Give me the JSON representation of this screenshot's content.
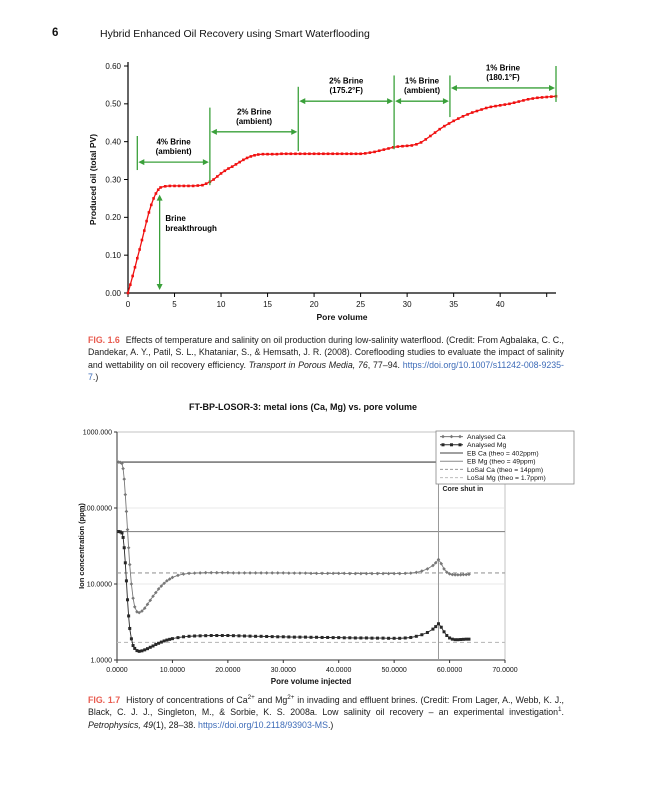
{
  "header": {
    "page_number": "6",
    "running_title": "Hybrid Enhanced Oil Recovery using Smart Waterflooding"
  },
  "captions": {
    "fig1": {
      "label": "FIG. 1.6",
      "part1": "Effects of temperature and salinity on oil production during low-salinity waterflood. (Credit: From Agbalaka, C. C., Dandekar, A. Y., Patil, S. L., Khataniar, S., & Hemsath, J. R. (2008). Coreflooding studies to evaluate the impact of salinity and wettability on oil recovery efficiency. ",
      "italic": "Transport in Porous Media, 76",
      "part2": ", 77–94. ",
      "link": "https://doi.org/10.1007/s11242-008-9235-7",
      "part3": ".)"
    },
    "fig2": {
      "label": "FIG. 1.7",
      "part1": "History of concentrations of Ca",
      "sup1": "2+",
      "part2": " and Mg",
      "sup2": "2+",
      "part3": " in invading and effluent brines. (Credit: From Lager, A., Webb, K. J., Black, C. J. J., Singleton, M., & Sorbie, K. S. 2008a. Low salinity oil recovery – an experimental investigation",
      "sup3": "1",
      "part4": ". ",
      "italic": "Petrophysics, 49",
      "part5": "(1), 28–38. ",
      "link": "https://doi.org/10.2118/93903-MS",
      "part6": ".)"
    }
  },
  "chart_data": [
    {
      "type": "line",
      "title": "",
      "xlabel": "Pore volume",
      "ylabel": "Produced oil (total PV)",
      "xlim": [
        0,
        46
      ],
      "ylim": [
        0,
        0.6
      ],
      "xticks": [
        0,
        5,
        10,
        15,
        20,
        25,
        30,
        35,
        40
      ],
      "yticks": [
        "0.00",
        "0.10",
        "0.20",
        "0.30",
        "0.40",
        "0.50",
        "0.60"
      ],
      "series": [
        {
          "name": "Produced oil",
          "color": "#f01010",
          "marker": "square",
          "x": [
            0,
            0.25,
            0.5,
            0.75,
            1,
            1.25,
            1.5,
            1.75,
            2,
            2.25,
            2.5,
            2.75,
            3,
            3.25,
            3.5,
            4,
            4.5,
            5,
            5.5,
            6,
            6.5,
            7,
            7.5,
            8,
            8.4,
            8.8,
            9.2,
            9.6,
            10,
            10.4,
            10.8,
            11.2,
            11.6,
            12,
            12.4,
            12.8,
            13.2,
            13.6,
            14,
            14.5,
            15,
            15.5,
            16,
            16.5,
            17,
            17.5,
            18,
            18.5,
            19,
            19.5,
            20,
            20.5,
            21,
            21.5,
            22,
            22.5,
            23,
            23.5,
            24,
            24.5,
            25,
            25.5,
            26,
            26.5,
            27,
            27.5,
            28,
            28.5,
            29,
            29.5,
            30,
            30.5,
            31,
            31.5,
            32,
            32.5,
            33,
            33.5,
            34,
            34.5,
            35,
            35.5,
            36,
            36.5,
            37,
            37.5,
            38,
            38.5,
            39,
            39.5,
            40,
            40.5,
            41,
            41.5,
            42,
            42.5,
            43,
            43.5,
            44,
            44.5,
            45,
            45.5,
            46
          ],
          "y": [
            0,
            0.022,
            0.045,
            0.068,
            0.092,
            0.115,
            0.14,
            0.165,
            0.19,
            0.213,
            0.233,
            0.25,
            0.263,
            0.273,
            0.279,
            0.282,
            0.283,
            0.283,
            0.283,
            0.283,
            0.283,
            0.283,
            0.284,
            0.285,
            0.289,
            0.294,
            0.3,
            0.308,
            0.316,
            0.323,
            0.329,
            0.334,
            0.34,
            0.346,
            0.352,
            0.357,
            0.361,
            0.364,
            0.366,
            0.367,
            0.367,
            0.367,
            0.367,
            0.368,
            0.368,
            0.368,
            0.368,
            0.368,
            0.368,
            0.368,
            0.368,
            0.368,
            0.368,
            0.368,
            0.368,
            0.368,
            0.368,
            0.368,
            0.368,
            0.368,
            0.368,
            0.369,
            0.371,
            0.373,
            0.376,
            0.379,
            0.382,
            0.385,
            0.387,
            0.388,
            0.389,
            0.39,
            0.393,
            0.398,
            0.406,
            0.415,
            0.424,
            0.433,
            0.441,
            0.448,
            0.455,
            0.461,
            0.467,
            0.472,
            0.477,
            0.481,
            0.485,
            0.489,
            0.492,
            0.494,
            0.496,
            0.498,
            0.5,
            0.503,
            0.506,
            0.509,
            0.512,
            0.514,
            0.516,
            0.517,
            0.518,
            0.519,
            0.52
          ]
        }
      ],
      "annotations": {
        "color": "#3aa03a",
        "segments": [
          {
            "label": "4% Brine\n(ambient)",
            "x1": 1,
            "x2": 8.8,
            "y": 0.346
          },
          {
            "label": "2% Brine\n(ambient)",
            "x1": 8.8,
            "x2": 18.3,
            "y": 0.426
          },
          {
            "label": "2% Brine\n(175.2°F)",
            "x1": 18.3,
            "x2": 28.6,
            "y": 0.507
          },
          {
            "label": "1% Brine\n(ambient)",
            "x1": 28.6,
            "x2": 34.6,
            "y": 0.507
          },
          {
            "label": "1% Brine\n(180.1°F)",
            "x1": 34.6,
            "x2": 46,
            "y": 0.542
          }
        ],
        "boundaries": [
          {
            "x": 1,
            "y1": 0.325,
            "y2": 0.415
          },
          {
            "x": 8.8,
            "y1": 0.285,
            "y2": 0.49
          },
          {
            "x": 18.3,
            "y1": 0.375,
            "y2": 0.545
          },
          {
            "x": 28.6,
            "y1": 0.38,
            "y2": 0.575
          },
          {
            "x": 34.6,
            "y1": 0.465,
            "y2": 0.575
          },
          {
            "x": 46,
            "y1": 0.505,
            "y2": 0.6
          }
        ],
        "breakthrough": {
          "label": "Brine\nbreakthrough",
          "x": 3.4,
          "y1": 0.26,
          "y2": 0.008,
          "label_x": 3.8,
          "label_y": 0.19
        }
      }
    },
    {
      "type": "line",
      "title": "FT-BP-LOSOR-3: metal ions (Ca, Mg) vs. pore volume",
      "xlabel": "Pore volume injected",
      "ylabel": "Ion concentration (ppm)",
      "xlim": [
        0,
        70
      ],
      "yscale": "log",
      "ylim": [
        1,
        1000
      ],
      "xtick_labels": [
        "0.0000",
        "10.0000",
        "20.0000",
        "30.0000",
        "40.0000",
        "50.0000",
        "60.0000",
        "70.0000"
      ],
      "ytick_values": [
        1,
        10,
        100,
        1000
      ],
      "ytick_labels": [
        "1.0000",
        "10.0000",
        "100.0000",
        "1000.000"
      ],
      "series": [
        {
          "name": "Analysed Ca",
          "color": "#787878",
          "marker": "diamond",
          "x": [
            0.3,
            0.6,
            0.9,
            1.1,
            1.3,
            1.5,
            1.7,
            1.9,
            2.1,
            2.3,
            2.6,
            2.9,
            3.2,
            3.6,
            4,
            4.5,
            5,
            5.5,
            6,
            6.5,
            7,
            7.5,
            8,
            8.5,
            9,
            9.5,
            10,
            11,
            12,
            13,
            14,
            15,
            16,
            17,
            18,
            19,
            20,
            21,
            22,
            23,
            24,
            25,
            26,
            27,
            28,
            29,
            30,
            31,
            32,
            33,
            34,
            35,
            36,
            37,
            38,
            39,
            40,
            41,
            42,
            43,
            44,
            45,
            46,
            47,
            48,
            49,
            50,
            51,
            52,
            53,
            54,
            55,
            56,
            57,
            57.5,
            58,
            58.5,
            59,
            59.5,
            60,
            60.5,
            61,
            61.5,
            62,
            62.5,
            63,
            63.5
          ],
          "y": [
            402,
            398,
            385,
            330,
            240,
            150,
            90,
            52,
            30,
            18,
            10,
            6.5,
            5,
            4.3,
            4.2,
            4.4,
            4.8,
            5.4,
            6.1,
            6.9,
            7.7,
            8.6,
            9.4,
            10.2,
            11,
            11.6,
            12.2,
            13,
            13.5,
            13.8,
            13.9,
            14,
            14.1,
            14.1,
            14.1,
            14.1,
            14.1,
            14,
            14,
            14,
            14,
            14,
            14,
            14,
            14,
            14,
            14,
            13.9,
            13.9,
            13.9,
            13.9,
            13.8,
            13.8,
            13.8,
            13.8,
            13.8,
            13.8,
            13.8,
            13.7,
            13.7,
            13.7,
            13.7,
            13.7,
            13.7,
            13.7,
            13.7,
            13.7,
            13.7,
            13.8,
            13.9,
            14.2,
            14.8,
            15.8,
            17.5,
            19,
            21,
            18.5,
            15.8,
            14.3,
            13.6,
            13.3,
            13.2,
            13.2,
            13.2,
            13.3,
            13.3,
            13.4
          ]
        },
        {
          "name": "Analysed Mg",
          "color": "#282828",
          "marker": "square",
          "x": [
            0.3,
            0.6,
            0.9,
            1.1,
            1.3,
            1.5,
            1.7,
            1.9,
            2.1,
            2.3,
            2.6,
            2.9,
            3.2,
            3.6,
            4,
            4.5,
            5,
            5.5,
            6,
            6.5,
            7,
            7.5,
            8,
            8.5,
            9,
            9.5,
            10,
            11,
            12,
            13,
            14,
            15,
            16,
            17,
            18,
            19,
            20,
            21,
            22,
            23,
            24,
            25,
            26,
            27,
            28,
            29,
            30,
            31,
            32,
            33,
            34,
            35,
            36,
            37,
            38,
            39,
            40,
            41,
            42,
            43,
            44,
            45,
            46,
            47,
            48,
            49,
            50,
            51,
            52,
            53,
            54,
            55,
            56,
            57,
            57.5,
            58,
            58.5,
            59,
            59.5,
            60,
            60.5,
            61,
            61.5,
            62,
            62.5,
            63,
            63.5
          ],
          "y": [
            49,
            48.5,
            47,
            41,
            30,
            19,
            11,
            6.2,
            3.8,
            2.6,
            1.9,
            1.55,
            1.42,
            1.33,
            1.3,
            1.32,
            1.36,
            1.41,
            1.47,
            1.53,
            1.6,
            1.66,
            1.72,
            1.78,
            1.83,
            1.87,
            1.91,
            1.97,
            2.02,
            2.05,
            2.07,
            2.08,
            2.09,
            2.1,
            2.1,
            2.1,
            2.1,
            2.09,
            2.08,
            2.07,
            2.06,
            2.05,
            2.05,
            2.04,
            2.03,
            2.02,
            2.02,
            2.01,
            2,
            2,
            2,
            1.99,
            1.99,
            1.98,
            1.98,
            1.97,
            1.97,
            1.96,
            1.96,
            1.95,
            1.95,
            1.95,
            1.94,
            1.94,
            1.94,
            1.93,
            1.93,
            1.93,
            1.95,
            1.98,
            2.05,
            2.15,
            2.3,
            2.55,
            2.75,
            3,
            2.7,
            2.35,
            2.1,
            1.95,
            1.88,
            1.85,
            1.85,
            1.86,
            1.87,
            1.88,
            1.88
          ]
        }
      ],
      "ref_lines": [
        {
          "name": "EB Ca (theo = 402ppm)",
          "value": 402,
          "color": "#404040",
          "dash": false
        },
        {
          "name": "EB Mg (theo = 49ppm)",
          "value": 49,
          "color": "#8a8a8a",
          "dash": false
        },
        {
          "name": "LoSal Ca (theo = 14ppm)",
          "value": 14,
          "color": "#9a9a9a",
          "dash": true
        },
        {
          "name": "LoSal Mg (theo = 1.7ppm)",
          "value": 1.7,
          "color": "#bdbdbd",
          "dash": true
        }
      ],
      "vline": {
        "label": "Core shut in",
        "x": 58
      },
      "legend_position": "top-right"
    }
  ]
}
